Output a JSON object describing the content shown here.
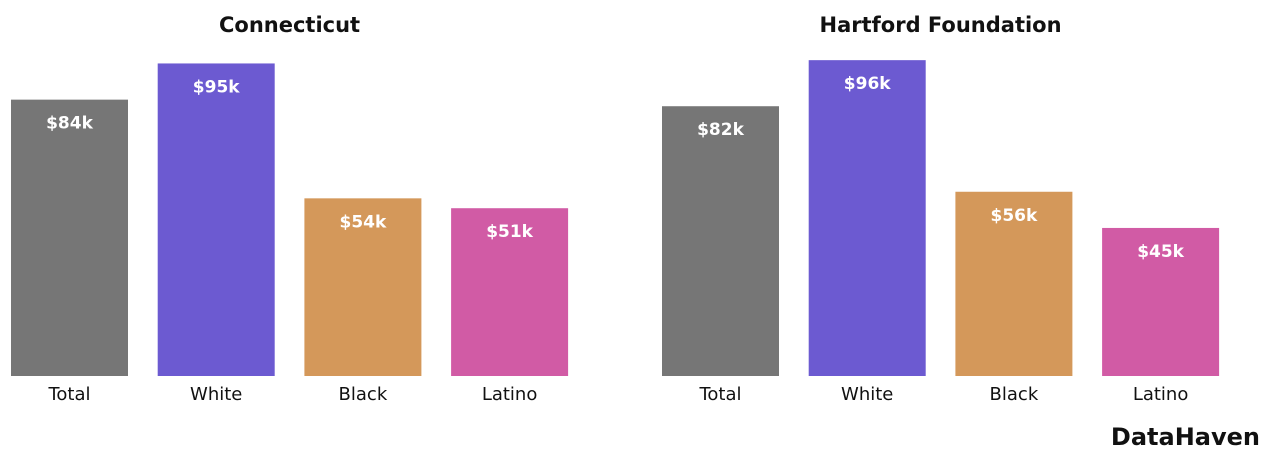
{
  "chart_data": [
    {
      "type": "bar",
      "title": "Connecticut",
      "categories": [
        "Total",
        "White",
        "Black",
        "Latino"
      ],
      "values": [
        84,
        95,
        54,
        51
      ],
      "value_labels": [
        "$84k",
        "$95k",
        "$54k",
        "$51k"
      ],
      "colors": [
        "#767676",
        "#6c5ad1",
        "#d4985a",
        "#d15ba5"
      ]
    },
    {
      "type": "bar",
      "title": "Hartford Foundation",
      "categories": [
        "Total",
        "White",
        "Black",
        "Latino"
      ],
      "values": [
        82,
        96,
        56,
        45
      ],
      "value_labels": [
        "$82k",
        "$96k",
        "$56k",
        "$45k"
      ],
      "colors": [
        "#767676",
        "#6c5ad1",
        "#d4985a",
        "#d15ba5"
      ]
    }
  ],
  "credit": "DataHaven"
}
